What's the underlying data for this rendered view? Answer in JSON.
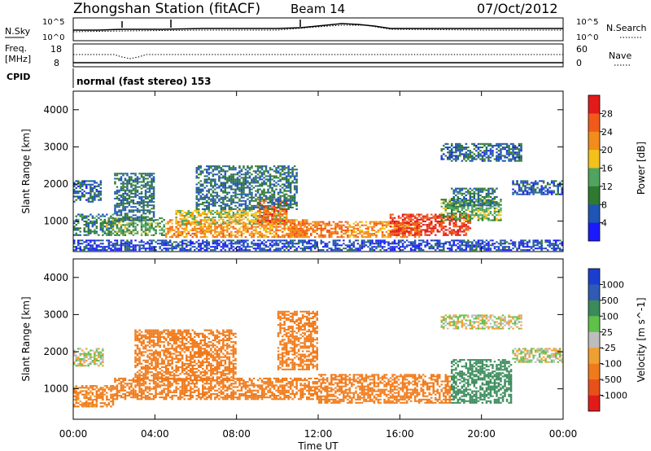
{
  "header": {
    "station": "Zhongshan Station (fitACF)",
    "beam": "Beam 14",
    "date": "07/Oct/2012",
    "cpid_label": "CPID",
    "cpid_value": "normal (fast stereo) 153"
  },
  "noise_panel": {
    "left_label": "N.Sky",
    "right_label": "N.Search",
    "left_ticks": [
      "10^5",
      "10^0"
    ],
    "right_ticks": [
      "10^5",
      "10^0"
    ]
  },
  "freq_panel": {
    "left_label_1": "Freq.",
    "left_label_2": "[MHz]",
    "right_label": "Nave",
    "left_ticks": [
      "18",
      "8"
    ],
    "right_ticks": [
      "60",
      "0"
    ]
  },
  "colors": {
    "power": [
      "#1a1aff",
      "#1f55b5",
      "#2f7a2f",
      "#4fa45f",
      "#f2c21a",
      "#f28c1a",
      "#f25a1a",
      "#e31a1a"
    ],
    "velocity": [
      "#1a3fd0",
      "#2f5ab5",
      "#3a8a5a",
      "#5fc04a",
      "#bdbdbd",
      "#f0a030",
      "#f07a1a",
      "#e8501a",
      "#e31a1a"
    ]
  },
  "chart_data": [
    {
      "type": "heatmap",
      "title": "",
      "xlabel": "Time UT",
      "ylabel": "Slant Range [km]",
      "x_ticks": [
        "00:00",
        "04:00",
        "08:00",
        "12:00",
        "16:00",
        "20:00",
        "00:00"
      ],
      "y_ticks": [
        "1000",
        "2000",
        "3000",
        "4000"
      ],
      "xlim": [
        0,
        24
      ],
      "ylim": [
        180,
        4500
      ],
      "colorbar": {
        "label": "Power [dB]",
        "ticks": [
          "4",
          "8",
          "12",
          "16",
          "20",
          "24",
          "28"
        ],
        "range": [
          0,
          32
        ]
      },
      "regions": [
        {
          "t": [
            0.0,
            1.4
          ],
          "r": [
            1500,
            2100
          ],
          "value": 7
        },
        {
          "t": [
            0.0,
            2.0
          ],
          "r": [
            600,
            1200
          ],
          "value": 9
        },
        {
          "t": [
            1.6,
            4.5
          ],
          "r": [
            600,
            1100
          ],
          "value": 13
        },
        {
          "t": [
            2.0,
            4.0
          ],
          "r": [
            1000,
            2300
          ],
          "value": 8
        },
        {
          "t": [
            4.5,
            11.5
          ],
          "r": [
            550,
            1050
          ],
          "value": 22
        },
        {
          "t": [
            5.0,
            10.5
          ],
          "r": [
            900,
            1300
          ],
          "value": 17
        },
        {
          "t": [
            9.0,
            10.5
          ],
          "r": [
            900,
            1600
          ],
          "value": 26
        },
        {
          "t": [
            6.0,
            11.0
          ],
          "r": [
            1300,
            2500
          ],
          "value": 8
        },
        {
          "t": [
            10.5,
            13.5
          ],
          "r": [
            550,
            1000
          ],
          "value": 24
        },
        {
          "t": [
            13.5,
            17.0
          ],
          "r": [
            550,
            1000
          ],
          "value": 22
        },
        {
          "t": [
            15.5,
            19.5
          ],
          "r": [
            600,
            1200
          ],
          "value": 28
        },
        {
          "t": [
            18.0,
            21.0
          ],
          "r": [
            1000,
            1600
          ],
          "value": 14
        },
        {
          "t": [
            18.5,
            20.8
          ],
          "r": [
            1400,
            1900
          ],
          "value": 9
        },
        {
          "t": [
            18.0,
            22.0
          ],
          "r": [
            2600,
            3100
          ],
          "value": 7
        },
        {
          "t": [
            21.5,
            24.0
          ],
          "r": [
            1700,
            2100
          ],
          "value": 6
        },
        {
          "t": [
            0.0,
            24.0
          ],
          "r": [
            200,
            500
          ],
          "value": 5
        }
      ]
    },
    {
      "type": "heatmap",
      "title": "",
      "xlabel": "Time UT",
      "ylabel": "Slant Range [km]",
      "x_ticks": [
        "00:00",
        "04:00",
        "08:00",
        "12:00",
        "16:00",
        "20:00",
        "00:00"
      ],
      "y_ticks": [
        "1000",
        "2000",
        "3000",
        "4000"
      ],
      "xlim": [
        0,
        24
      ],
      "ylim": [
        180,
        4500
      ],
      "colorbar": {
        "label": "Velocity [m s^-1]",
        "ticks": [
          "1000",
          "500",
          "100",
          "25",
          "-25",
          "-100",
          "-500",
          "-1000"
        ]
      },
      "regions": [
        {
          "t": [
            0.0,
            1.5
          ],
          "r": [
            1600,
            2100
          ],
          "value": 0
        },
        {
          "t": [
            0.0,
            2.0
          ],
          "r": [
            500,
            1100
          ],
          "value": -150
        },
        {
          "t": [
            2.0,
            12.0
          ],
          "r": [
            700,
            1300
          ],
          "value": -250
        },
        {
          "t": [
            3.0,
            8.0
          ],
          "r": [
            1200,
            2600
          ],
          "value": -400
        },
        {
          "t": [
            10.0,
            12.0
          ],
          "r": [
            1500,
            3100
          ],
          "value": -300
        },
        {
          "t": [
            12.0,
            18.5
          ],
          "r": [
            600,
            1400
          ],
          "value": -200
        },
        {
          "t": [
            18.5,
            21.5
          ],
          "r": [
            600,
            1800
          ],
          "value": 200
        },
        {
          "t": [
            18.0,
            22.0
          ],
          "r": [
            2600,
            3000
          ],
          "value": 0
        },
        {
          "t": [
            21.5,
            24.0
          ],
          "r": [
            1700,
            2100
          ],
          "value": 0
        }
      ]
    }
  ]
}
